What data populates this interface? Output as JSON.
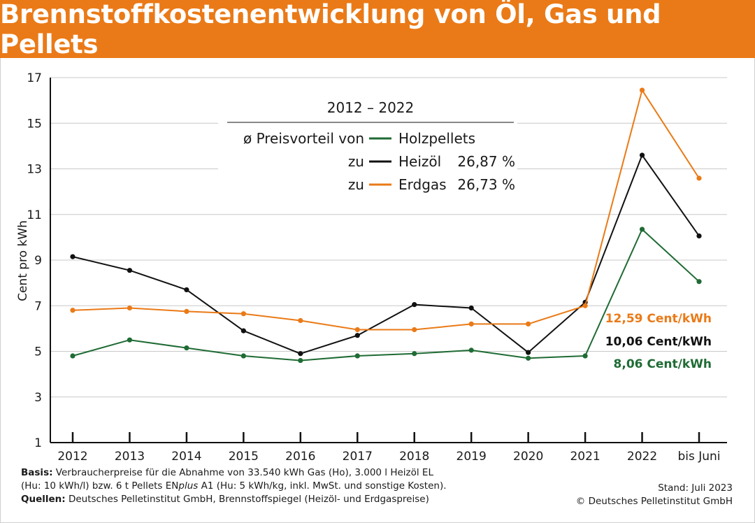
{
  "header": {
    "title": "Brennstoffkostenentwicklung von Öl, Gas und Pellets"
  },
  "legend": {
    "period": "2012 – 2022",
    "line1_prefix": "ø Preisvorteil von",
    "line1_series": "Holzpellets",
    "line2_prefix": "zu",
    "line2_series": "Heizöl",
    "line2_value": "26,87 %",
    "line3_prefix": "zu",
    "line3_series": "Erdgas",
    "line3_value": "26,73 %"
  },
  "end_labels": {
    "erdgas": "12,59 Cent/kWh",
    "heizoel": "10,06 Cent/kWh",
    "pellets": "8,06 Cent/kWh"
  },
  "footer": {
    "basis_label": "Basis:",
    "basis_line1": "Verbraucherpreise für die Abnahme von 33.540 kWh Gas (Ho), 3.000 l Heizöl EL",
    "basis_line2": "(Hu: 10 kWh/l) bzw. 6 t Pellets EN",
    "basis_line2_italic": "plus",
    "basis_line2_end": " A1 (Hu: 5 kWh/kg, inkl. MwSt. und sonstige Kosten).",
    "sources_label": "Quellen:",
    "sources_text": "Deutsches Pelletinstitut GmbH, Brennstoffspiegel (Heizöl- und Erdgaspreise)",
    "stand": "Stand: Juli 2023",
    "copyright": "© Deutsches Pelletinstitut GmbH"
  },
  "colors": {
    "header": "#ea7a17",
    "erdgas": "#ea7a17",
    "heizoel": "#111111",
    "pellets": "#1f6b34",
    "grid": "#c8c8c8"
  },
  "chart_data": {
    "type": "line",
    "title": "Brennstoffkostenentwicklung von Öl, Gas und Pellets",
    "xlabel": "",
    "ylabel": "Cent pro kWh",
    "ylim": [
      1,
      17
    ],
    "yticks": [
      1,
      3,
      5,
      7,
      9,
      11,
      13,
      15,
      17
    ],
    "grid": true,
    "legend_position": "top-center",
    "categories": [
      "2012",
      "2013",
      "2014",
      "2015",
      "2016",
      "2017",
      "2018",
      "2019",
      "2020",
      "2021",
      "2022",
      "bis Juni\n2023"
    ],
    "series": [
      {
        "name": "Heizöl",
        "color": "#111111",
        "values": [
          9.15,
          8.55,
          7.7,
          5.9,
          4.9,
          5.7,
          7.05,
          6.9,
          4.95,
          7.15,
          13.6,
          10.06
        ]
      },
      {
        "name": "Erdgas",
        "color": "#ea7a17",
        "values": [
          6.8,
          6.9,
          6.75,
          6.65,
          6.35,
          5.95,
          5.95,
          6.2,
          6.2,
          7.0,
          16.45,
          12.59
        ]
      },
      {
        "name": "Holzpellets",
        "color": "#1f6b34",
        "values": [
          4.8,
          5.5,
          5.15,
          4.8,
          4.6,
          4.8,
          4.9,
          5.05,
          4.7,
          4.8,
          10.35,
          8.06
        ]
      }
    ]
  }
}
